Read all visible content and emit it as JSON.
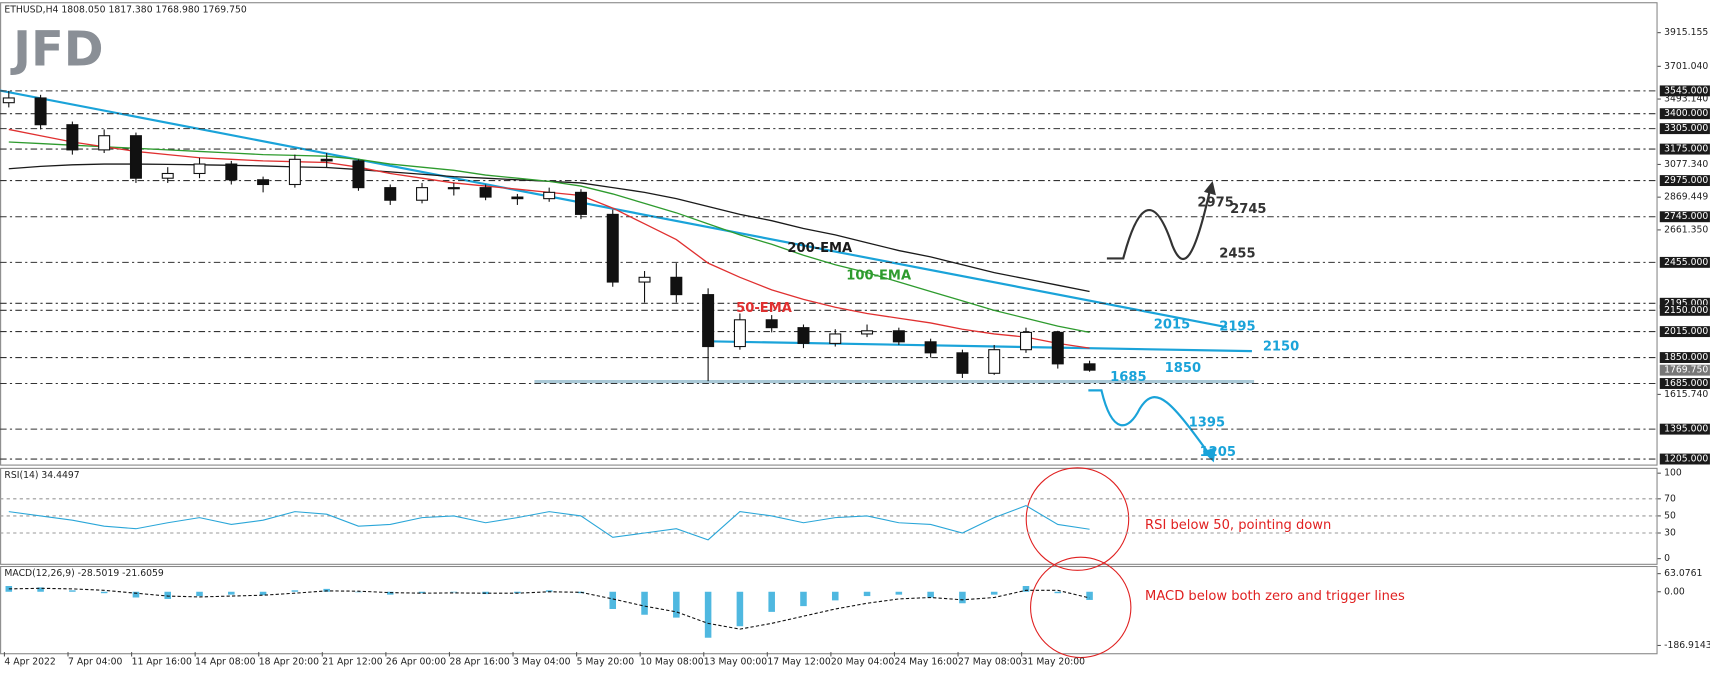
{
  "logo": "JFD",
  "chart_data": [
    {
      "type": "candlestick",
      "title": "ETHUSD,H4  1808.050 1817.380 1768.980 1769.750",
      "categories": [
        "4 Apr 2022",
        null,
        "7 Apr 04:00",
        null,
        "11 Apr 16:00",
        null,
        "14 Apr 08:00",
        null,
        "18 Apr 20:00",
        null,
        "21 Apr 12:00",
        null,
        "26 Apr 00:00",
        null,
        "28 Apr 16:00",
        null,
        "3 May 04:00",
        null,
        "5 May 20:00",
        null,
        "10 May 08:00",
        null,
        "13 May 00:00",
        null,
        "17 May 12:00",
        null,
        "20 May 04:00",
        null,
        "24 May 16:00",
        null,
        "27 May 08:00",
        null,
        "31 May 20:00",
        null,
        null
      ],
      "open": [
        3470,
        3500,
        3330,
        3170,
        3260,
        2990,
        3020,
        3080,
        2980,
        2950,
        3110,
        3100,
        2930,
        2850,
        2930,
        2930,
        2870,
        2860,
        2900,
        2760,
        2330,
        2360,
        2250,
        1920,
        2090,
        2040,
        1940,
        2000,
        2020,
        1950,
        1880,
        1750,
        1900,
        2010,
        1810
      ],
      "high": [
        3545,
        3520,
        3350,
        3300,
        3280,
        3060,
        3120,
        3100,
        3000,
        3140,
        3150,
        3110,
        2950,
        2960,
        2960,
        2950,
        2890,
        2930,
        2920,
        2790,
        2400,
        2450,
        2290,
        2130,
        2120,
        2060,
        2030,
        2060,
        2040,
        1970,
        1900,
        1930,
        2040,
        2020,
        1830
      ],
      "low": [
        3440,
        3300,
        3140,
        3150,
        2960,
        2960,
        2990,
        2950,
        2900,
        2930,
        3060,
        2910,
        2820,
        2830,
        2880,
        2850,
        2820,
        2840,
        2730,
        2300,
        2200,
        2200,
        1700,
        1900,
        2010,
        1910,
        1920,
        1980,
        1930,
        1850,
        1720,
        1740,
        1880,
        1780,
        1760
      ],
      "close": [
        3500,
        3330,
        3170,
        3260,
        2990,
        3020,
        3080,
        2980,
        2950,
        3110,
        3100,
        2930,
        2850,
        2930,
        2930,
        2870,
        2860,
        2900,
        2760,
        2330,
        2360,
        2250,
        1920,
        2090,
        2040,
        1940,
        2000,
        2020,
        1950,
        1880,
        1750,
        1900,
        2010,
        1810,
        1770
      ],
      "series": [
        {
          "name": "200-EMA",
          "color": "#1a1a1a",
          "values": [
            3050,
            3065,
            3075,
            3080,
            3080,
            3078,
            3075,
            3072,
            3068,
            3062,
            3058,
            3045,
            3030,
            3015,
            3000,
            2990,
            2980,
            2970,
            2960,
            2930,
            2900,
            2860,
            2810,
            2760,
            2720,
            2670,
            2630,
            2580,
            2530,
            2490,
            2440,
            2390,
            2350,
            2310,
            2270
          ]
        },
        {
          "name": "100-EMA",
          "color": "#2e9b2e",
          "values": [
            3220,
            3210,
            3200,
            3190,
            3180,
            3170,
            3160,
            3150,
            3140,
            3135,
            3130,
            3110,
            3080,
            3060,
            3040,
            3010,
            2990,
            2970,
            2940,
            2890,
            2830,
            2770,
            2700,
            2630,
            2570,
            2500,
            2440,
            2390,
            2330,
            2270,
            2210,
            2150,
            2100,
            2050,
            2010
          ]
        },
        {
          "name": "50-EMA",
          "color": "#e03030",
          "values": [
            3300,
            3260,
            3220,
            3190,
            3160,
            3140,
            3120,
            3110,
            3100,
            3095,
            3090,
            3060,
            3020,
            2990,
            2960,
            2940,
            2920,
            2900,
            2880,
            2800,
            2700,
            2600,
            2450,
            2360,
            2280,
            2220,
            2170,
            2130,
            2100,
            2070,
            2030,
            2000,
            1980,
            1940,
            1910
          ]
        }
      ],
      "ylim": [
        1170,
        4088
      ],
      "yticks": [
        3915.155,
        {
          "value": 3701.04,
          "label": "3701.040"
        },
        {
          "value": 3493.14,
          "label": "3493.140"
        },
        {
          "value": 3077.34,
          "label": "3077.340"
        },
        2869.449,
        {
          "value": 2661.35,
          "label": "2661.350"
        },
        {
          "value": 1615.74,
          "label": "1615.740"
        }
      ],
      "levels": [
        {
          "value": 3545,
          "label": "3545.000"
        },
        {
          "value": 3400,
          "label": "3400.000"
        },
        {
          "value": 3305,
          "label": "3305.000"
        },
        {
          "value": 3175,
          "label": "3175.000"
        },
        {
          "value": 2975,
          "label": "2975.000"
        },
        {
          "value": 2745,
          "label": "2745.000"
        },
        {
          "value": 2455,
          "label": "2455.000"
        },
        {
          "value": 2195,
          "label": "2195.000"
        },
        {
          "value": 2150,
          "label": "2150.000"
        },
        {
          "value": 2015,
          "label": "2015.000"
        },
        {
          "value": 1850,
          "label": "1850.000"
        },
        {
          "value": 1685,
          "label": "1685.000"
        },
        {
          "value": 1395,
          "label": "1395.000"
        },
        {
          "value": 1205,
          "label": "1205.000"
        }
      ],
      "last_price": {
        "value": 1769.75,
        "label": "1769.750"
      },
      "price_labels": [
        {
          "value": 2975,
          "color": "#333333"
        },
        {
          "value": 2745,
          "color": "#333333"
        },
        {
          "value": 2455,
          "color": "#333333"
        },
        {
          "value": 2195,
          "color": "#1aa3d9"
        },
        {
          "value": 2150,
          "color": "#1aa3d9"
        },
        {
          "value": 2015,
          "color": "#1aa3d9"
        },
        {
          "value": 1850,
          "color": "#1aa3d9"
        },
        {
          "value": 1685,
          "color": "#1aa3d9"
        },
        {
          "value": 1395,
          "color": "#1aa3d9"
        },
        {
          "value": 1205,
          "color": "#1aa3d9"
        }
      ]
    },
    {
      "type": "line",
      "title": "RSI(14) 34.4497",
      "color": "#2aa6d8",
      "values": [
        55,
        50,
        45,
        38,
        35,
        42,
        48,
        40,
        45,
        55,
        52,
        38,
        40,
        48,
        50,
        42,
        48,
        55,
        50,
        25,
        30,
        35,
        22,
        55,
        50,
        42,
        48,
        50,
        42,
        40,
        30,
        48,
        62,
        40,
        34.4
      ],
      "ylim": [
        -6,
        105
      ],
      "yticks": [
        100,
        70,
        50,
        30,
        0
      ],
      "levels": [
        70,
        50,
        30
      ],
      "annotation": "RSI below 50, pointing down"
    },
    {
      "type": "bar",
      "title": "MACD(12,26,9) -28.5019 -21.6059",
      "color": "#4fb8e0",
      "values": [
        20,
        15,
        5,
        -5,
        -20,
        -25,
        -15,
        -10,
        -12,
        5,
        10,
        0,
        -10,
        -5,
        -2,
        -8,
        -5,
        5,
        -5,
        -60,
        -80,
        -90,
        -160,
        -120,
        -70,
        -50,
        -30,
        -15,
        -10,
        -20,
        -40,
        -10,
        20,
        -5,
        -28.5
      ],
      "signal": [
        10,
        12,
        10,
        5,
        -5,
        -15,
        -18,
        -15,
        -12,
        -5,
        3,
        2,
        -3,
        -5,
        -4,
        -5,
        -5,
        0,
        -2,
        -25,
        -50,
        -70,
        -110,
        -130,
        -110,
        -85,
        -60,
        -40,
        -25,
        -20,
        -28,
        -20,
        5,
        5,
        -21.6
      ],
      "ylim": [
        -210,
        86
      ],
      "yticks": [
        63.0761,
        {
          "value": 0,
          "label": "0.00"
        },
        -186.9143
      ],
      "annotation": "MACD below both zero and trigger lines"
    }
  ]
}
